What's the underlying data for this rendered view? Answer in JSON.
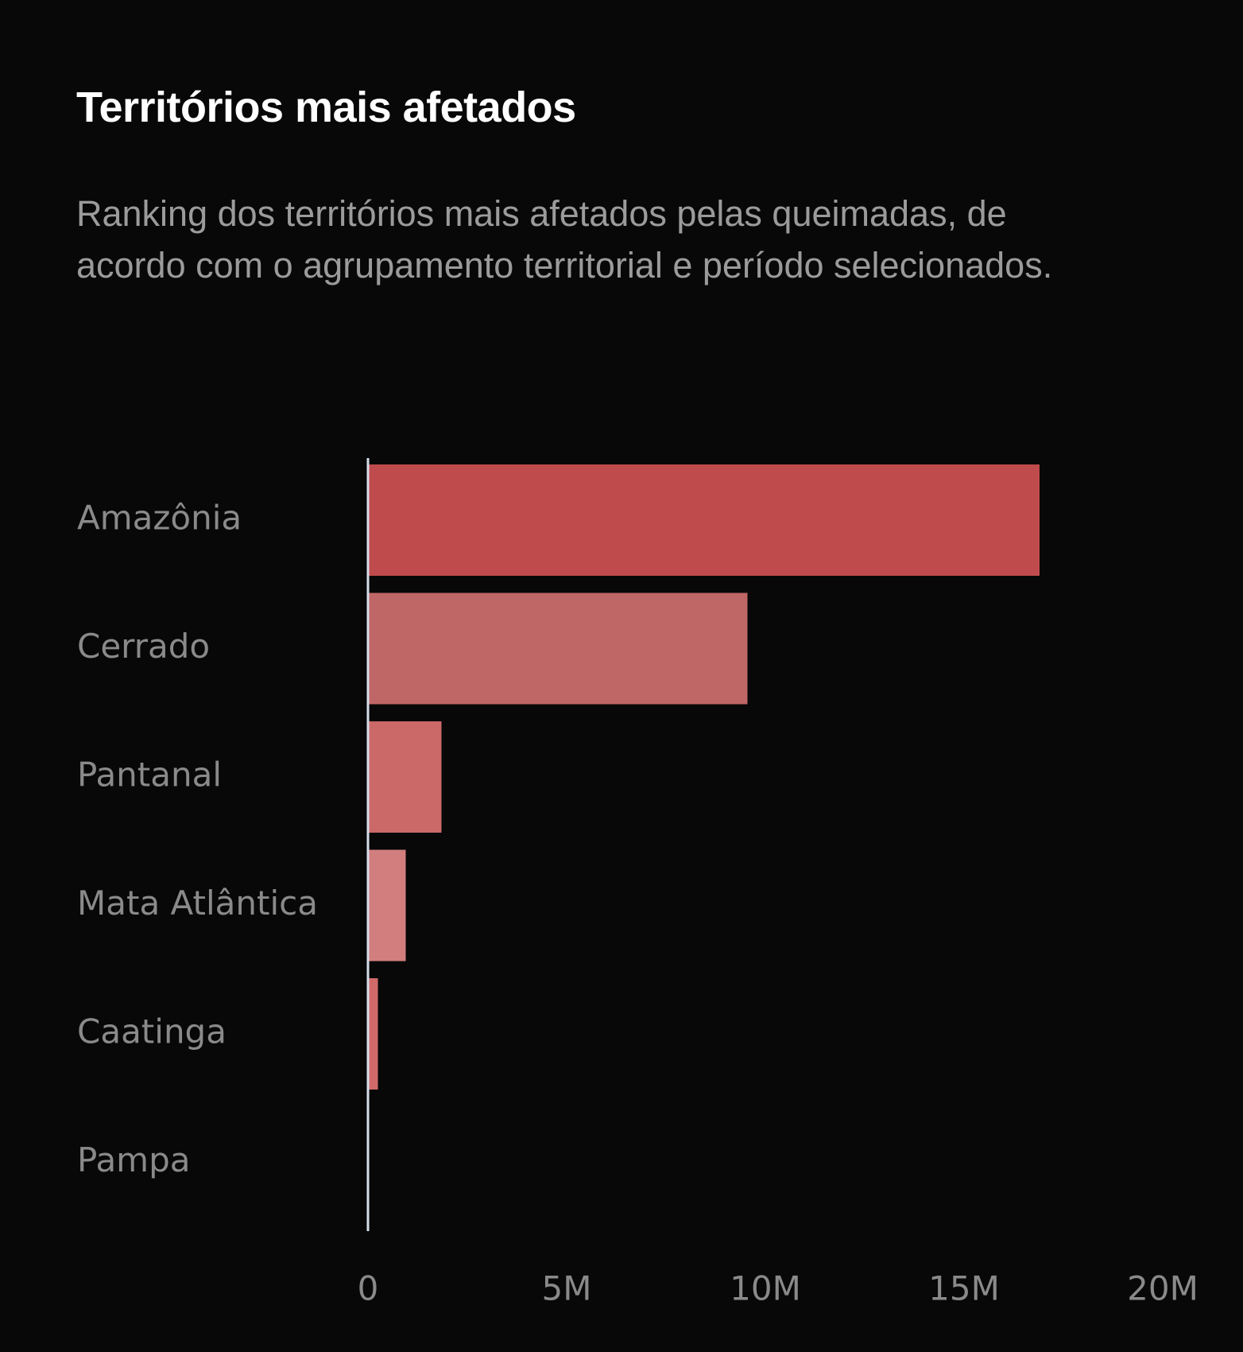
{
  "header": {
    "title": "Territórios mais afetados",
    "subtitle": "Ranking dos territórios mais afetados pelas queimadas, de acordo com o agrupamento territorial e período selecionados."
  },
  "colors": {
    "background": "#080808",
    "axis": "#d6deea",
    "text": "#8a8a8a",
    "bars": [
      "#c04b4c",
      "#bf6666",
      "#cb6969",
      "#d27e7e",
      "#d06a6a",
      "#d06a6a"
    ]
  },
  "chart_data": {
    "type": "bar",
    "orientation": "horizontal",
    "categories": [
      "Amazônia",
      "Cerrado",
      "Pantanal",
      "Mata Atlântica",
      "Caatinga",
      "Pampa"
    ],
    "values": [
      16900000,
      9550000,
      1850000,
      950000,
      250000,
      0
    ],
    "xlim": [
      0,
      20000000
    ],
    "xticks": [
      0,
      5000000,
      10000000,
      15000000,
      20000000
    ],
    "xtick_labels": [
      "0",
      "5M",
      "10M",
      "15M",
      "20M"
    ],
    "grid": false,
    "legend": "none"
  }
}
